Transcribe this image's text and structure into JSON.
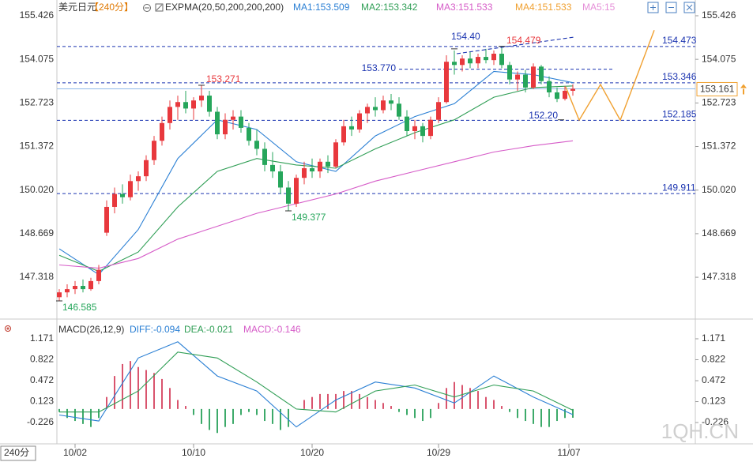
{
  "header": {
    "symbol": "美元日元",
    "period": "【240分】",
    "indicator": "EXPMA(20,50,200,200,200)",
    "extra": [
      {
        "text": "MA4:151.533",
        "color": "#f0a030"
      },
      {
        "text": "MA5:15",
        "color": "#e58fd8"
      }
    ]
  },
  "period_button": "240分",
  "watermark": "1QH.CN",
  "chart_data": [
    {
      "type": "candlestick",
      "x": [
        0,
        1,
        2,
        3,
        4,
        5,
        6,
        7,
        8,
        9,
        10,
        11,
        12,
        13,
        14,
        15,
        16,
        17,
        18,
        19,
        20,
        21,
        22,
        23,
        24,
        25,
        26,
        27,
        28,
        29,
        30,
        31,
        32,
        33,
        34,
        35,
        36,
        37,
        38,
        39,
        40,
        41,
        42,
        43,
        44,
        45,
        46,
        47,
        48,
        49,
        50,
        51,
        52,
        53,
        54,
        55,
        56,
        57,
        58,
        59,
        60,
        61,
        62,
        63,
        64,
        65
      ],
      "open": [
        146.7,
        146.85,
        146.95,
        147.05,
        146.95,
        147.2,
        148.7,
        149.5,
        149.9,
        149.8,
        150.3,
        150.45,
        150.95,
        151.55,
        152.1,
        152.6,
        152.75,
        152.55,
        152.8,
        152.95,
        152.45,
        151.75,
        152.2,
        152.3,
        151.95,
        151.55,
        151.3,
        150.8,
        150.6,
        150.1,
        149.6,
        150.4,
        150.7,
        150.6,
        150.9,
        150.75,
        151.5,
        152.0,
        151.9,
        152.4,
        152.6,
        152.5,
        152.8,
        152.7,
        152.3,
        151.85,
        152.0,
        151.7,
        152.2,
        152.75,
        154.0,
        153.9,
        154.1,
        153.95,
        154.15,
        154.05,
        154.25,
        153.9,
        153.45,
        153.6,
        153.2,
        153.85,
        153.4,
        153.05,
        152.85,
        153.1
      ],
      "high": [
        146.95,
        147.1,
        147.2,
        147.25,
        147.3,
        147.7,
        149.7,
        150.1,
        150.2,
        150.5,
        150.6,
        151.1,
        151.7,
        152.3,
        152.8,
        152.95,
        153.1,
        152.9,
        153.271,
        153.1,
        152.6,
        152.4,
        152.5,
        152.5,
        152.1,
        151.9,
        151.5,
        151.2,
        150.8,
        150.3,
        150.5,
        150.9,
        151.0,
        151.0,
        151.1,
        151.6,
        152.2,
        152.3,
        152.5,
        152.7,
        152.9,
        152.95,
        153.0,
        152.9,
        152.5,
        152.2,
        152.1,
        152.3,
        152.9,
        154.2,
        154.35,
        154.2,
        154.3,
        154.25,
        154.4,
        154.35,
        154.479,
        154.0,
        153.7,
        153.75,
        153.95,
        153.9,
        153.55,
        153.2,
        153.25,
        153.3
      ],
      "low": [
        146.585,
        146.7,
        146.8,
        146.85,
        146.9,
        147.1,
        148.6,
        149.3,
        149.6,
        149.7,
        150.0,
        150.3,
        150.8,
        151.4,
        151.9,
        152.2,
        152.4,
        152.2,
        152.6,
        152.3,
        151.6,
        151.6,
        151.9,
        151.8,
        151.4,
        151.1,
        150.6,
        150.4,
        149.9,
        149.377,
        149.5,
        150.2,
        150.4,
        150.4,
        150.55,
        150.7,
        151.4,
        151.7,
        151.8,
        152.1,
        152.3,
        152.4,
        152.5,
        152.2,
        151.7,
        151.6,
        151.5,
        151.6,
        152.1,
        152.7,
        153.6,
        153.7,
        153.8,
        153.8,
        153.95,
        153.9,
        153.8,
        153.3,
        153.1,
        153.05,
        153.15,
        153.3,
        152.9,
        152.75,
        152.8,
        152.95
      ],
      "close": [
        146.85,
        146.95,
        147.05,
        146.95,
        147.2,
        147.55,
        149.5,
        149.9,
        149.8,
        150.3,
        150.45,
        150.95,
        151.55,
        152.1,
        152.6,
        152.75,
        152.55,
        152.8,
        152.95,
        152.45,
        151.75,
        152.2,
        152.3,
        151.95,
        151.55,
        151.3,
        150.8,
        150.6,
        150.1,
        149.6,
        150.4,
        150.7,
        150.6,
        150.9,
        150.75,
        151.5,
        152.0,
        151.9,
        152.4,
        152.6,
        152.5,
        152.8,
        152.7,
        152.3,
        151.85,
        152.0,
        151.7,
        152.2,
        152.75,
        154.0,
        153.9,
        154.1,
        153.95,
        154.15,
        154.05,
        154.25,
        153.9,
        153.45,
        153.6,
        153.2,
        153.85,
        153.4,
        153.05,
        152.85,
        153.1,
        153.161
      ],
      "up_color": "#e8383d",
      "down_color": "#26a65b",
      "xlim": [
        -0.3,
        80.5
      ],
      "ylim": [
        146.12,
        155.67
      ],
      "yticks": [
        155.426,
        154.075,
        152.723,
        151.372,
        {
          "value": 150.02,
          "label": "150.020"
        },
        148.669,
        147.318
      ],
      "series": [
        {
          "name": "MA1:153.509",
          "color": "#2a7fd4",
          "x": [
            0,
            5,
            10,
            15,
            20,
            25,
            30,
            35,
            40,
            45,
            50,
            55,
            60,
            65
          ],
          "values": [
            148.2,
            147.4,
            148.8,
            151.0,
            152.2,
            151.9,
            150.9,
            150.6,
            151.7,
            152.3,
            152.7,
            153.7,
            153.6,
            153.35
          ]
        },
        {
          "name": "MA2:153.342",
          "color": "#2f9e55",
          "x": [
            0,
            5,
            10,
            15,
            20,
            25,
            30,
            35,
            40,
            45,
            50,
            55,
            60,
            65
          ],
          "values": [
            148.0,
            147.5,
            148.1,
            149.5,
            150.6,
            151.0,
            150.8,
            150.7,
            151.3,
            151.8,
            152.2,
            152.9,
            153.2,
            153.25
          ]
        },
        {
          "name": "MA3:151.533",
          "color": "#d65cc8",
          "x": [
            0,
            5,
            10,
            15,
            20,
            25,
            30,
            35,
            40,
            45,
            50,
            55,
            60,
            65
          ],
          "values": [
            147.7,
            147.6,
            147.9,
            148.5,
            148.9,
            149.3,
            149.6,
            149.9,
            150.3,
            150.6,
            150.9,
            151.2,
            151.4,
            151.55
          ]
        }
      ],
      "levels": [
        {
          "value": 154.473,
          "color": "#1a33b0"
        },
        {
          "value": 153.346,
          "color": "#1a33b0"
        },
        {
          "value": 152.185,
          "color": "#1a33b0"
        },
        {
          "value": 149.911,
          "color": "#1a33b0"
        }
      ],
      "partial_levels": [
        {
          "value": 153.77,
          "label": "153.770",
          "x": [
            43,
            70
          ],
          "color": "#1a33b0"
        }
      ],
      "trendline": {
        "x": [
          50.3,
          65.3
        ],
        "values": [
          154.25,
          154.77
        ],
        "color": "#1a33b0"
      },
      "projection": {
        "x": [
          64.1,
          65.8,
          68.5,
          71,
          75.3
        ],
        "values": [
          153.22,
          152.19,
          153.295,
          152.19,
          154.98
        ],
        "color": "#f0a030"
      },
      "last_price": {
        "value": 153.161,
        "color": "#f0a030"
      },
      "annotations": [
        {
          "value": 153.271,
          "x": 18,
          "color": "#e8383d",
          "placement": "above-right"
        },
        {
          "value": 149.377,
          "x": 29,
          "color": "#26a65b",
          "placement": "below-right"
        },
        {
          "value": 146.585,
          "x": 0,
          "color": "#26a65b",
          "placement": "below-right"
        },
        {
          "value": 154.4,
          "label": "154.40",
          "x": 50,
          "color": "#1a33b0",
          "placement": "above"
        },
        {
          "value": 154.479,
          "x": 56,
          "color": "#e8383d",
          "placement": "above-right"
        },
        {
          "value": 152.2,
          "label": "152.20",
          "x": 63.5,
          "color": "#1a33b0",
          "placement": "left"
        }
      ]
    },
    {
      "type": "macd",
      "title": "MACD(26,12,9)",
      "name": "MACD:-0.146",
      "name_color": "#d65cc8",
      "x": [
        0,
        1,
        2,
        3,
        4,
        5,
        6,
        7,
        8,
        9,
        10,
        11,
        12,
        13,
        14,
        15,
        16,
        17,
        18,
        19,
        20,
        21,
        22,
        23,
        24,
        25,
        26,
        27,
        28,
        29,
        30,
        31,
        32,
        33,
        34,
        35,
        36,
        37,
        38,
        39,
        40,
        41,
        42,
        43,
        44,
        45,
        46,
        47,
        48,
        49,
        50,
        51,
        52,
        53,
        54,
        55,
        56,
        57,
        58,
        59,
        60,
        61,
        62,
        63,
        64,
        65
      ],
      "values": [
        -0.05,
        -0.15,
        -0.2,
        -0.25,
        -0.3,
        -0.15,
        0.2,
        0.55,
        0.75,
        0.8,
        0.7,
        0.65,
        0.6,
        0.5,
        0.35,
        0.15,
        0.05,
        -0.1,
        -0.25,
        -0.35,
        -0.4,
        -0.3,
        -0.25,
        -0.1,
        -0.05,
        -0.1,
        -0.2,
        -0.25,
        -0.35,
        -0.3,
        0.0,
        0.15,
        0.2,
        0.25,
        0.25,
        0.25,
        0.3,
        0.3,
        0.25,
        0.2,
        0.15,
        0.1,
        0.05,
        -0.05,
        -0.1,
        -0.15,
        -0.2,
        -0.15,
        0.1,
        0.35,
        0.45,
        0.4,
        0.35,
        0.3,
        0.2,
        0.15,
        0.05,
        -0.05,
        -0.15,
        -0.2,
        -0.25,
        -0.3,
        -0.3,
        -0.2,
        -0.15,
        -0.146
      ],
      "up_color": "#d9546e",
      "down_color": "#3daa6a",
      "series": [
        {
          "name": "DIFF:-0.094",
          "color": "#2a7fd4",
          "x": [
            0,
            5,
            10,
            15,
            20,
            25,
            30,
            35,
            40,
            45,
            50,
            55,
            60,
            65
          ],
          "values": [
            -0.1,
            -0.2,
            0.85,
            1.12,
            0.55,
            0.3,
            -0.3,
            0.15,
            0.45,
            0.35,
            0.1,
            0.55,
            0.2,
            -0.094
          ]
        },
        {
          "name": "DEA:-0.021",
          "color": "#2f9e55",
          "x": [
            0,
            5,
            10,
            15,
            20,
            25,
            30,
            35,
            40,
            45,
            50,
            55,
            60,
            65
          ],
          "values": [
            -0.05,
            -0.05,
            0.3,
            0.95,
            0.85,
            0.45,
            0.0,
            -0.05,
            0.3,
            0.4,
            0.2,
            0.4,
            0.3,
            -0.021
          ]
        }
      ],
      "xlim": [
        -0.3,
        80.5
      ],
      "ylim": [
        -0.555,
        1.421
      ],
      "yticks": [
        1.171,
        0.822,
        0.472,
        0.123,
        -0.226
      ],
      "xticks": [
        {
          "value": 2,
          "label": "10/02"
        },
        {
          "value": 17,
          "label": "10/10"
        },
        {
          "value": 32,
          "label": "10/20"
        },
        {
          "value": 48,
          "label": "10/29"
        },
        {
          "value": 64.5,
          "label": "11/07"
        }
      ]
    }
  ]
}
